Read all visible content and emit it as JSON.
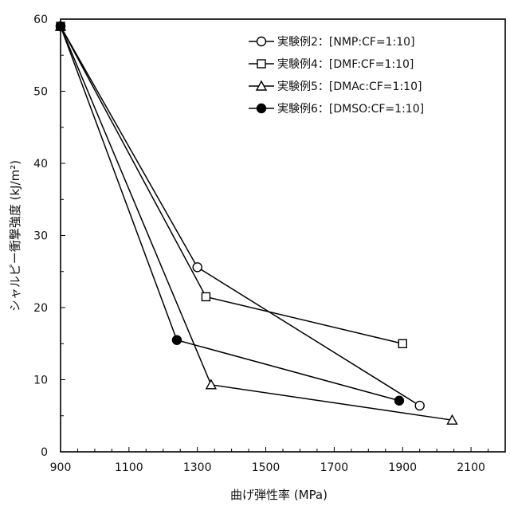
{
  "chart_data": {
    "type": "line",
    "title": "",
    "xlabel": "曲げ弾性率 (MPa)",
    "ylabel": "シャルピー衝撃強度 (kJ/m²)",
    "xlim": [
      900,
      2200
    ],
    "ylim": [
      0,
      60
    ],
    "xticks": [
      900,
      1100,
      1300,
      1500,
      1700,
      1900,
      2100
    ],
    "yticks": [
      0,
      10,
      20,
      30,
      40,
      50,
      60
    ],
    "grid": false,
    "legend_position": "top-right",
    "series": [
      {
        "name": "実験例2：[NMP:CF=1:10]",
        "marker": "open-circle",
        "x": [
          900,
          1300,
          1950
        ],
        "y": [
          59,
          25.6,
          6.4
        ]
      },
      {
        "name": "実験例4：[DMF:CF=1:10]",
        "marker": "open-square",
        "x": [
          900,
          1325,
          1900
        ],
        "y": [
          59,
          21.5,
          15
        ]
      },
      {
        "name": "実験例5：[DMAc:CF=1:10]",
        "marker": "open-triangle",
        "x": [
          900,
          1340,
          2045
        ],
        "y": [
          59,
          9.3,
          4.4
        ]
      },
      {
        "name": "実験例6：[DMSO:CF=1:10]",
        "marker": "filled-circle",
        "x": [
          900,
          1240,
          1890
        ],
        "y": [
          59,
          15.5,
          7.1
        ]
      }
    ]
  }
}
